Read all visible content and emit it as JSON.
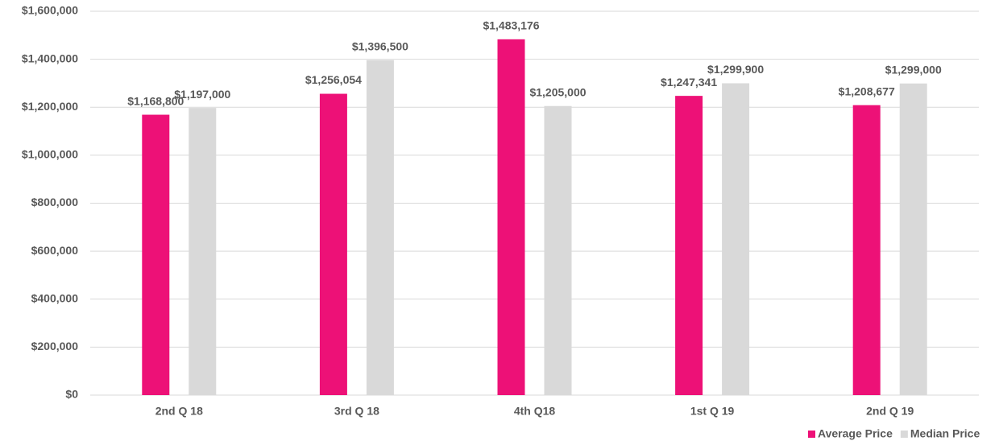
{
  "chart_data": {
    "type": "bar",
    "categories": [
      "2nd Q 18",
      "3rd Q 18",
      "4th Q18",
      "1st Q 19",
      "2nd Q 19"
    ],
    "series": [
      {
        "name": "Average Price",
        "color": "#ed1177",
        "values": [
          1168800,
          1256054,
          1483176,
          1247341,
          1208677
        ],
        "value_labels": [
          "$1,168,800",
          "$1,256,054",
          "$1,483,176",
          "$1,247,341",
          "$1,208,677"
        ]
      },
      {
        "name": "Median Price",
        "color": "#d9d9d9",
        "values": [
          1197000,
          1396500,
          1205000,
          1299900,
          1299000
        ],
        "value_labels": [
          "$1,197,000",
          "$1,396,500",
          "$1,205,000",
          "$1,299,900",
          "$1,299,000"
        ]
      }
    ],
    "ylim": [
      0,
      1600000
    ],
    "yticks": [
      {
        "value": 0,
        "label": "$0"
      },
      {
        "value": 200000,
        "label": "$200,000"
      },
      {
        "value": 400000,
        "label": "$400,000"
      },
      {
        "value": 600000,
        "label": "$600,000"
      },
      {
        "value": 800000,
        "label": "$800,000"
      },
      {
        "value": 1000000,
        "label": "$1,000,000"
      },
      {
        "value": 1200000,
        "label": "$1,200,000"
      },
      {
        "value": 1400000,
        "label": "$1,400,000"
      },
      {
        "value": 1600000,
        "label": "$1,600,000"
      }
    ],
    "grid": true,
    "legend": "bottom-right"
  }
}
